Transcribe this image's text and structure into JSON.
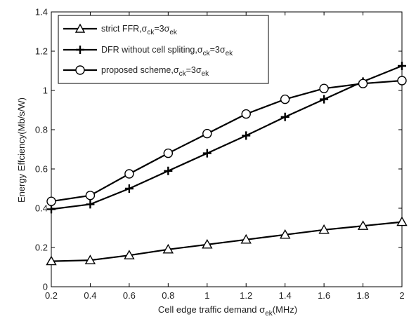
{
  "chart_data": {
    "type": "line",
    "xlabel_main": "Cell edge traffic demand ",
    "xlabel_sym": "σ",
    "xlabel_sub": "ek",
    "xlabel_unit": "(MHz)",
    "ylabel": "Energy Effciency(Mb/s/W)",
    "xlim": [
      0.2,
      2.0
    ],
    "ylim": [
      0,
      1.4
    ],
    "x_ticks": [
      "0.2",
      "0.4",
      "0.6",
      "0.8",
      "1",
      "1.2",
      "1.4",
      "1.6",
      "1.8",
      "2"
    ],
    "y_ticks": [
      "0",
      "0.2",
      "0.4",
      "0.6",
      "0.8",
      "1",
      "1.2",
      "1.4"
    ],
    "grid": false,
    "legend_position": "top-left",
    "x": [
      0.2,
      0.4,
      0.6,
      0.8,
      1.0,
      1.2,
      1.4,
      1.6,
      1.8,
      2.0
    ],
    "series": [
      {
        "name": "strict FFR,σck=3σek",
        "label_main": "strict FFR,",
        "marker": "triangle",
        "values": [
          0.13,
          0.135,
          0.16,
          0.19,
          0.215,
          0.24,
          0.265,
          0.29,
          0.31,
          0.33
        ]
      },
      {
        "name": "DFR without cell spliting,σck=3σek",
        "label_main": "DFR without cell spliting,",
        "marker": "plus",
        "values": [
          0.395,
          0.42,
          0.5,
          0.59,
          0.68,
          0.77,
          0.865,
          0.955,
          1.045,
          1.125
        ]
      },
      {
        "name": "proposed scheme,σck=3σek",
        "label_main": "proposed scheme,",
        "marker": "circle",
        "values": [
          0.435,
          0.465,
          0.575,
          0.68,
          0.78,
          0.88,
          0.955,
          1.01,
          1.035,
          1.05
        ]
      }
    ],
    "legend_sym": "σ",
    "legend_sub1": "ck",
    "legend_eq": "=3",
    "legend_sub2": "ek"
  }
}
